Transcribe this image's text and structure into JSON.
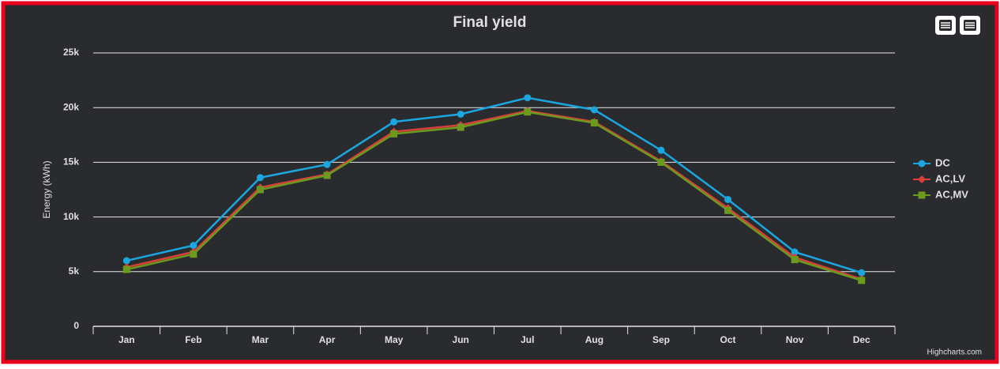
{
  "chart_data": {
    "type": "line",
    "title": "Final yield",
    "y_label": "Energy (kWh)",
    "credits": "Highcharts.com",
    "categories": [
      "Jan",
      "Feb",
      "Mar",
      "Apr",
      "May",
      "Jun",
      "Jul",
      "Aug",
      "Sep",
      "Oct",
      "Nov",
      "Dec"
    ],
    "series": [
      {
        "name": "DC",
        "color": "#1ba6e0",
        "marker": "circle",
        "values": [
          6000,
          7400,
          13600,
          14800,
          18700,
          19400,
          20900,
          19800,
          16100,
          11600,
          6800,
          4900
        ]
      },
      {
        "name": "AC,LV",
        "color": "#d9403a",
        "marker": "diamond",
        "values": [
          5400,
          6800,
          12700,
          13900,
          17800,
          18400,
          19700,
          18700,
          15100,
          10800,
          6300,
          4300
        ]
      },
      {
        "name": "AC,MV",
        "color": "#6b9a1f",
        "marker": "square",
        "values": [
          5200,
          6600,
          12500,
          13800,
          17600,
          18200,
          19600,
          18600,
          15000,
          10600,
          6100,
          4200
        ]
      }
    ],
    "ylim": [
      0,
      25000
    ],
    "yticks": [
      0,
      {
        "value": 5000,
        "label": "5k"
      },
      {
        "value": 10000,
        "label": "10k"
      },
      {
        "value": 15000,
        "label": "15k"
      },
      {
        "value": 20000,
        "label": "20k"
      },
      {
        "value": 25000,
        "label": "25k"
      }
    ],
    "grid": true,
    "legend": "right"
  }
}
